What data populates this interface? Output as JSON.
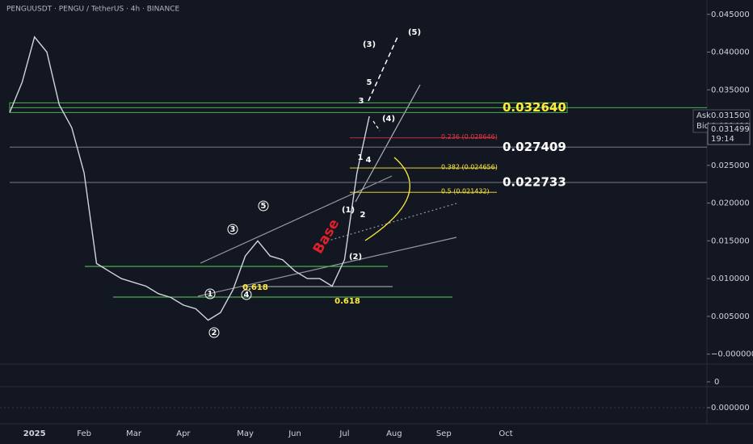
{
  "chart_data": {
    "type": "line",
    "title": "PENGUUSDT · PENGU / TetherUS · 4h · BINANCE",
    "color": "#d1d4dc",
    "categories": [
      null,
      null,
      "2025",
      null,
      null,
      null,
      "Feb",
      null,
      null,
      null,
      "Mar",
      null,
      null,
      null,
      "Apr",
      null,
      null,
      null,
      null,
      "May",
      null,
      null,
      null,
      "Jun",
      null,
      null,
      null,
      "Jul",
      null,
      null,
      null,
      "Aug",
      null,
      null,
      null,
      "Sep",
      null,
      null,
      null,
      null,
      "Oct",
      null
    ],
    "values": [
      0.032,
      0.036,
      0.042,
      0.04,
      0.033,
      0.03,
      0.024,
      0.012,
      0.011,
      0.01,
      0.0095,
      0.009,
      0.008,
      0.0075,
      0.0065,
      0.006,
      0.0045,
      0.0055,
      0.0085,
      0.013,
      0.015,
      0.013,
      0.0125,
      0.011,
      0.01,
      0.01,
      0.009,
      0.0125,
      0.024,
      0.0315,
      null,
      null,
      null,
      null,
      null,
      null,
      null,
      null,
      null,
      null,
      null,
      null
    ],
    "ylim": [
      -0.001,
      0.0469
    ],
    "yticks": [
      {
        "value": 0.045,
        "label": "0.045000"
      },
      {
        "value": 0.04,
        "label": "0.040000"
      },
      {
        "value": 0.035,
        "label": "0.035000"
      },
      {
        "value": 0.03,
        "label": "0.030000"
      },
      {
        "value": 0.025,
        "label": "0.025000"
      },
      {
        "value": 0.02,
        "label": "0.020000"
      },
      {
        "value": 0.015,
        "label": "0.015000"
      },
      {
        "value": 0.01,
        "label": "0.010000"
      },
      {
        "value": 0.005,
        "label": "0.005000"
      },
      {
        "value": 0,
        "label": "−0.000000"
      }
    ],
    "volume_yticks": [
      0
    ],
    "oscillator_yticks": [
      {
        "value": 0,
        "label": "0.000000"
      }
    ],
    "quote": {
      "ask_label": "Ask",
      "ask": {
        "value": 0.0315,
        "label": "0.031500"
      },
      "bid_label": "Bid",
      "bid": {
        "value": 0.031499,
        "label": "0.031499"
      },
      "last": {
        "value": 0.031499,
        "label": "0.031499"
      },
      "countdown": "19:14"
    },
    "levels": [
      {
        "value": 0.03264,
        "label": "0.032640",
        "color": "#ffeb3b"
      },
      {
        "value": 0.027409,
        "label": "0.027409",
        "color": "#ffffff"
      },
      {
        "value": 0.022733,
        "label": "0.022733",
        "color": "#ffffff"
      }
    ],
    "fib_levels": [
      {
        "value": 0.028646,
        "label": "0.236 (0.028646)",
        "color": "#f23645"
      },
      {
        "value": 0.024656,
        "label": "0.382 (0.024656)",
        "color": "#ffeb3b"
      },
      {
        "value": 0.021432,
        "label": "0.5 (0.021432)",
        "color": "#ffeb3b"
      }
    ],
    "annotations": [
      {
        "text": "(5)",
        "color": "#ffffff"
      },
      {
        "text": "(3)",
        "color": "#ffffff"
      },
      {
        "text": "5",
        "color": "#ffffff"
      },
      {
        "text": "3",
        "color": "#ffffff"
      },
      {
        "text": "(4)",
        "color": "#ffffff"
      },
      {
        "text": "1",
        "color": "#ffffff"
      },
      {
        "text": "4",
        "color": "#ffffff"
      },
      {
        "text": "(1)",
        "color": "#ffffff"
      },
      {
        "text": "2",
        "color": "#ffffff"
      },
      {
        "text": "(2)",
        "color": "#ffffff"
      },
      {
        "text": "Base",
        "color": "#e0202a"
      },
      {
        "text": "0.618",
        "color": "#ffeb3b"
      },
      {
        "text": "0.618",
        "color": "#ffeb3b"
      },
      {
        "text": "3",
        "color": "#ffffff"
      },
      {
        "text": "5",
        "color": "#ffffff"
      },
      {
        "text": "1",
        "color": "#ffffff"
      },
      {
        "text": "2",
        "color": "#ffffff"
      },
      {
        "text": "4",
        "color": "#ffffff"
      }
    ]
  }
}
